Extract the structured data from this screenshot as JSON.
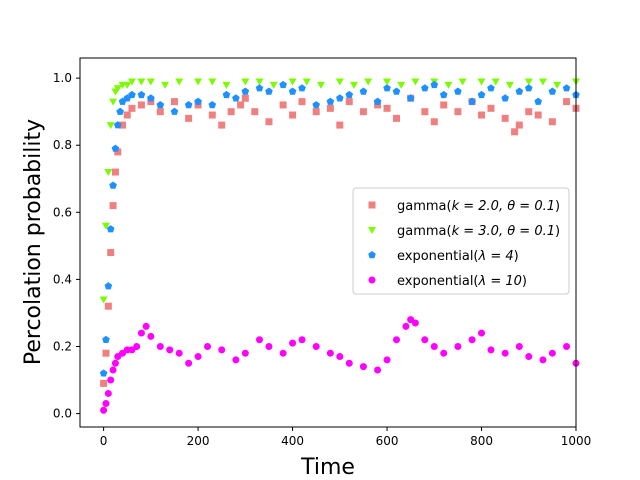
{
  "chart_data": {
    "type": "scatter",
    "title": "",
    "xlabel": "Time",
    "ylabel": "Percolation probability",
    "xlim": [
      -50,
      1000
    ],
    "ylim": [
      -0.04,
      1.06
    ],
    "xticks": [
      0,
      200,
      400,
      600,
      800,
      1000
    ],
    "xtick_labels": [
      "0",
      "200",
      "400",
      "600",
      "800",
      "1000"
    ],
    "yticks": [
      0.0,
      0.2,
      0.4,
      0.6,
      0.8,
      1.0
    ],
    "ytick_labels": [
      "0.0",
      "0.2",
      "0.4",
      "0.6",
      "0.8",
      "1.0"
    ],
    "grid": false,
    "legend_position": "center-right",
    "series": [
      {
        "name": "gamma(k = 2.0, θ = 0.1)",
        "label_main": "gamma(",
        "label_params": "k = 2.0, θ = 0.1",
        "label_close": ")",
        "color": "#f08080",
        "marker": "square",
        "x": [
          0,
          5,
          10,
          15,
          20,
          25,
          30,
          40,
          50,
          60,
          80,
          100,
          120,
          150,
          180,
          200,
          230,
          250,
          270,
          290,
          300,
          320,
          350,
          380,
          400,
          420,
          450,
          480,
          500,
          520,
          550,
          580,
          600,
          620,
          650,
          680,
          700,
          720,
          750,
          780,
          800,
          820,
          850,
          870,
          880,
          900,
          920,
          950,
          980,
          1000
        ],
        "y": [
          0.09,
          0.18,
          0.32,
          0.48,
          0.62,
          0.72,
          0.78,
          0.86,
          0.89,
          0.91,
          0.92,
          0.93,
          0.9,
          0.93,
          0.88,
          0.92,
          0.89,
          0.86,
          0.9,
          0.92,
          0.94,
          0.9,
          0.87,
          0.92,
          0.89,
          0.93,
          0.9,
          0.91,
          0.86,
          0.93,
          0.9,
          0.92,
          0.91,
          0.88,
          0.94,
          0.9,
          0.87,
          0.92,
          0.9,
          0.93,
          0.89,
          0.91,
          0.88,
          0.84,
          0.86,
          0.9,
          0.89,
          0.87,
          0.93,
          0.91
        ]
      },
      {
        "name": "gamma(k = 3.0, θ = 0.1)",
        "label_main": "gamma(",
        "label_params": "k = 3.0, θ = 0.1",
        "label_close": ")",
        "color": "#7cfc00",
        "marker": "triangle-down",
        "x": [
          0,
          5,
          10,
          15,
          20,
          25,
          30,
          40,
          50,
          60,
          80,
          100,
          130,
          160,
          200,
          230,
          260,
          300,
          330,
          360,
          400,
          430,
          460,
          500,
          530,
          560,
          600,
          630,
          660,
          700,
          730,
          760,
          800,
          830,
          860,
          900,
          930,
          960,
          1000
        ],
        "y": [
          0.34,
          0.56,
          0.72,
          0.86,
          0.93,
          0.96,
          0.97,
          0.98,
          0.98,
          0.99,
          0.99,
          0.99,
          0.98,
          0.99,
          0.99,
          0.99,
          0.98,
          0.99,
          0.99,
          0.98,
          0.99,
          0.99,
          0.98,
          0.99,
          0.98,
          0.99,
          0.99,
          0.98,
          0.99,
          0.99,
          0.98,
          0.99,
          0.99,
          0.99,
          0.98,
          0.99,
          0.99,
          0.98,
          0.99
        ]
      },
      {
        "name": "exponential(λ = 4)",
        "label_main": "exponential(",
        "label_params": "λ = 4",
        "label_close": ")",
        "color": "#1e90ff",
        "marker": "pentagon",
        "x": [
          0,
          5,
          10,
          15,
          20,
          25,
          30,
          35,
          40,
          50,
          60,
          80,
          100,
          120,
          150,
          180,
          200,
          230,
          260,
          280,
          300,
          330,
          350,
          380,
          400,
          420,
          450,
          480,
          500,
          520,
          550,
          580,
          600,
          620,
          650,
          680,
          700,
          720,
          750,
          780,
          800,
          820,
          850,
          880,
          900,
          920,
          950,
          980,
          1000
        ],
        "y": [
          0.12,
          0.22,
          0.38,
          0.55,
          0.68,
          0.79,
          0.86,
          0.9,
          0.93,
          0.94,
          0.95,
          0.95,
          0.94,
          0.92,
          0.9,
          0.92,
          0.93,
          0.92,
          0.95,
          0.94,
          0.96,
          0.97,
          0.96,
          0.98,
          0.96,
          0.97,
          0.92,
          0.93,
          0.94,
          0.95,
          0.96,
          0.93,
          0.97,
          0.96,
          0.94,
          0.97,
          0.98,
          0.95,
          0.96,
          0.93,
          0.95,
          0.97,
          0.94,
          0.96,
          0.97,
          0.93,
          0.96,
          0.97,
          0.95
        ]
      },
      {
        "name": "exponential(λ = 10)",
        "label_main": "exponential(",
        "label_params": "λ = 10",
        "label_close": ")",
        "color": "#ff00ff",
        "marker": "circle",
        "x": [
          0,
          5,
          10,
          15,
          20,
          25,
          30,
          40,
          50,
          60,
          70,
          80,
          90,
          100,
          120,
          140,
          160,
          180,
          200,
          220,
          250,
          280,
          300,
          330,
          350,
          380,
          400,
          420,
          450,
          480,
          500,
          520,
          550,
          580,
          600,
          620,
          640,
          650,
          660,
          680,
          700,
          720,
          750,
          780,
          800,
          820,
          850,
          880,
          900,
          930,
          950,
          980,
          1000
        ],
        "y": [
          0.01,
          0.03,
          0.06,
          0.1,
          0.13,
          0.15,
          0.17,
          0.18,
          0.19,
          0.19,
          0.2,
          0.24,
          0.26,
          0.23,
          0.2,
          0.19,
          0.18,
          0.15,
          0.17,
          0.2,
          0.19,
          0.16,
          0.18,
          0.22,
          0.2,
          0.18,
          0.21,
          0.22,
          0.2,
          0.18,
          0.17,
          0.15,
          0.14,
          0.13,
          0.16,
          0.22,
          0.26,
          0.28,
          0.27,
          0.22,
          0.2,
          0.18,
          0.2,
          0.22,
          0.24,
          0.19,
          0.18,
          0.2,
          0.17,
          0.16,
          0.18,
          0.2,
          0.15
        ]
      }
    ]
  }
}
